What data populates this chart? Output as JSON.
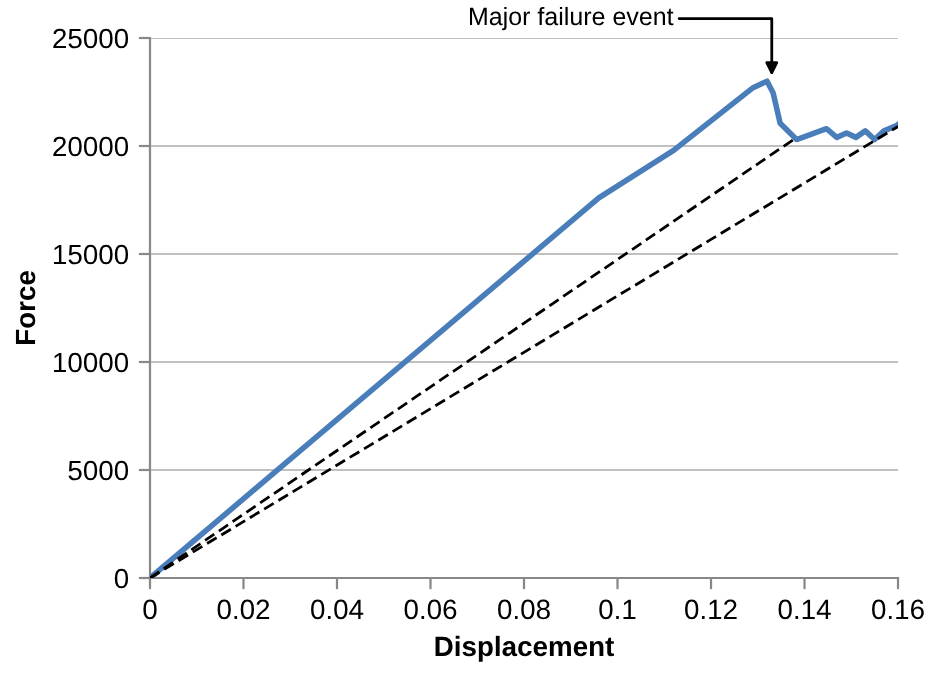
{
  "chart_data": {
    "type": "line",
    "xlabel": "Displacement",
    "ylabel": "Force",
    "xlim": [
      0,
      0.16
    ],
    "xticks": [
      0,
      0.02,
      0.04,
      0.06,
      0.08,
      0.1,
      0.12,
      0.14,
      0.16
    ],
    "ylim": [
      0,
      25000
    ],
    "yticks": [
      0,
      5000,
      10000,
      15000,
      20000,
      25000
    ],
    "grid": "y",
    "marker": "none",
    "series": [
      {
        "color": "#4a7ebb",
        "line_style": "solid",
        "x": [
          0,
          0.0264,
          0.096,
          0.112,
          0.129,
          0.132,
          0.1333,
          0.1348,
          0.1383,
          0.1447,
          0.1469,
          0.149,
          0.151,
          0.153,
          0.155,
          0.157,
          0.1597,
          0.16
        ],
        "values": [
          0,
          4840,
          17600,
          19800,
          22700,
          23000,
          22450,
          21050,
          20300,
          20800,
          20400,
          20600,
          20400,
          20700,
          20300,
          20700,
          20950,
          21000
        ]
      },
      {
        "color": "#000000",
        "line_style": "dashed",
        "x": [
          0,
          0.138
        ],
        "values": [
          0,
          20350
        ]
      },
      {
        "color": "#000000",
        "line_style": "dashed",
        "x": [
          0,
          0.16
        ],
        "values": [
          0,
          20900
        ]
      }
    ],
    "annotations": [
      {
        "text": "Major failure event",
        "x": 0.133,
        "y": 23000
      }
    ]
  }
}
